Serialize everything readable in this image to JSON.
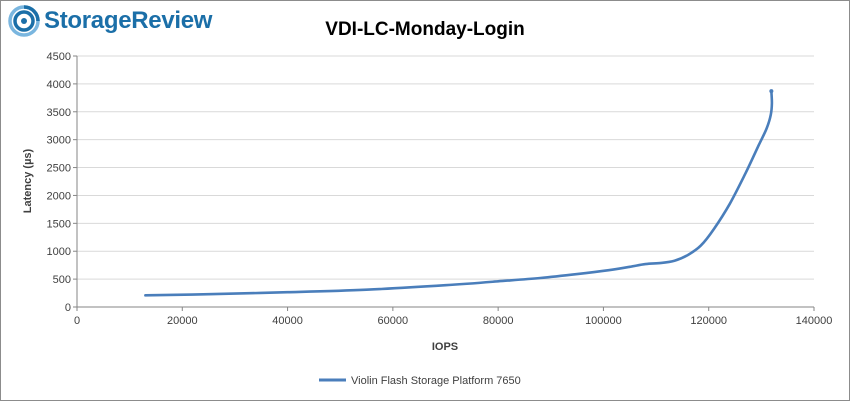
{
  "brand": {
    "name": "StorageReview",
    "colors": {
      "primary": "#1b6fa8",
      "accent": "#7ab6df"
    }
  },
  "chart_data": {
    "type": "line",
    "title": "VDI-LC-Monday-Login",
    "xlabel": "IOPS",
    "ylabel": "Latency (µs)",
    "xlim": [
      0,
      140000
    ],
    "ylim": [
      0,
      4500
    ],
    "xticks": [
      0,
      20000,
      40000,
      60000,
      80000,
      100000,
      120000,
      140000
    ],
    "yticks": [
      0,
      500,
      1000,
      1500,
      2000,
      2500,
      3000,
      3500,
      4000,
      4500
    ],
    "grid": true,
    "legend": "bottom",
    "series": [
      {
        "name": "Violin Flash Storage Platform 7650",
        "color": "#4a7ebb",
        "x": [
          13000,
          25000,
          40000,
          55000,
          70000,
          80000,
          88000,
          95000,
          101000,
          105000,
          108000,
          111000,
          113500,
          116000,
          118500,
          121000,
          124000,
          127000,
          129500,
          131000,
          131800,
          132000,
          131900
        ],
        "y": [
          210,
          230,
          265,
          310,
          390,
          460,
          520,
          590,
          660,
          720,
          770,
          790,
          830,
          930,
          1100,
          1400,
          1850,
          2400,
          2900,
          3200,
          3450,
          3650,
          3870
        ]
      }
    ]
  }
}
